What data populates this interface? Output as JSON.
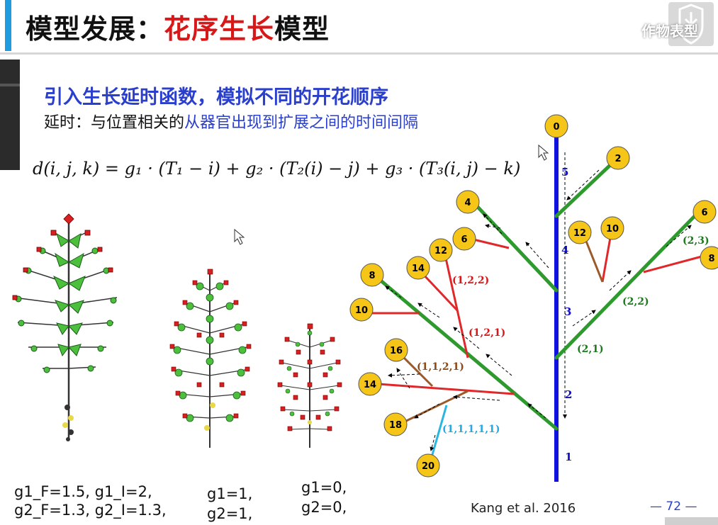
{
  "title": {
    "prefix": "模型发展：",
    "highlight": "花序生长",
    "suffix": "模型"
  },
  "logo_text": "作物表型",
  "heading": "引入生长延时函数，模拟不同的开花顺序",
  "subheading": {
    "prefix": "延时：与位置相关的",
    "highlight": "从器官出现到扩展之间的时间间隔"
  },
  "formula": "d(i, j, k) = g₁ · (T₁ − i) + g₂ · (T₂(i) − j) + g₃ · (T₃(i, j) − k)",
  "params": [
    {
      "line1": "g1_F=1.5, g1_I=2,",
      "line2": "g2_F=1.3, g2_I=1.3,"
    },
    {
      "line1": "g1=1,",
      "line2": "g2=1,"
    },
    {
      "line1": "g1=0,",
      "line2": "g2=0,"
    }
  ],
  "credit": "Kang et al. 2016",
  "page_number": "— 72 —",
  "diagram": {
    "nodes": [
      "0",
      "2",
      "4",
      "6",
      "12",
      "10",
      "8",
      "10",
      "14",
      "12",
      "6",
      "8",
      "16",
      "14",
      "18",
      "20"
    ],
    "branch_labels": [
      "(1,2,2)",
      "(1,2,1)",
      "(1,1,2,1)",
      "(1,1,1,1,1)",
      "(2,1)",
      "(2,2)",
      "(2,3)"
    ],
    "axis_labels": [
      "5",
      "4",
      "3",
      "2",
      "1"
    ]
  },
  "colors": {
    "accent": "#1f9be0",
    "title_red": "#d81818",
    "heading_blue": "#2a3fcb",
    "axis": "#1010e0",
    "green": "#2e9a2e",
    "red": "#e0282a",
    "brown": "#9a5a2a",
    "cyan": "#29b6e0",
    "node": "#f5c518"
  }
}
